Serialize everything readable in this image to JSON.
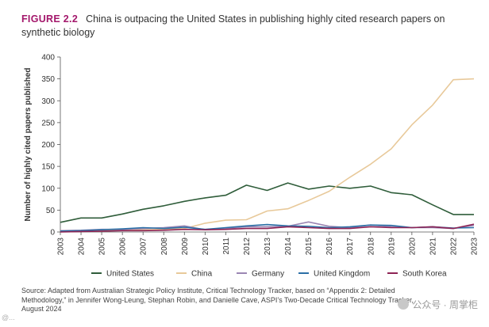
{
  "header": {
    "figure_label": "FIGURE 2.2",
    "title": "China is outpacing the United States in publishing highly cited research papers on synthetic biology"
  },
  "source": "Source: Adapted from Australian Strategic Policy Institute, Critical Technology Tracker, based on “Appendix 2: Detailed Methodology,” in Jennifer Wong-Leung, Stephan Robin, and Danielle Cave, ASPI’s Two-Decade Critical Technology Tracker, August 2024",
  "watermark": "公众号 · 周掌柜",
  "footer_mark": "@...",
  "chart_data": {
    "type": "line",
    "title": "China is outpacing the United States in publishing highly cited research papers on synthetic biology",
    "xlabel": "",
    "ylabel": "Number of highly cited papers published",
    "x": [
      "2003",
      "2004",
      "2005",
      "2006",
      "2007",
      "2008",
      "2009",
      "2010",
      "2011",
      "2012",
      "2013",
      "2014",
      "2015",
      "2016",
      "2017",
      "2018",
      "2019",
      "2020",
      "2021",
      "2022",
      "2023"
    ],
    "ylim": [
      0,
      400
    ],
    "yticks": [
      0,
      50,
      100,
      150,
      200,
      250,
      300,
      350,
      400
    ],
    "grid": false,
    "legend_position": "bottom",
    "series": [
      {
        "name": "United States",
        "color": "#2f5d3a",
        "values": [
          22,
          32,
          32,
          41,
          52,
          60,
          70,
          78,
          84,
          107,
          95,
          112,
          98,
          105,
          100,
          105,
          90,
          85,
          62,
          40,
          40
        ]
      },
      {
        "name": "China",
        "color": "#e8c99a",
        "values": [
          2,
          2,
          3,
          4,
          5,
          6,
          8,
          20,
          27,
          28,
          48,
          53,
          72,
          93,
          125,
          155,
          190,
          245,
          290,
          348,
          350
        ]
      },
      {
        "name": "Germany",
        "color": "#9b86b3",
        "values": [
          3,
          4,
          6,
          6,
          8,
          10,
          14,
          5,
          8,
          12,
          12,
          13,
          23,
          13,
          10,
          16,
          12,
          10,
          10,
          8,
          15
        ]
      },
      {
        "name": "United Kingdom",
        "color": "#2b6fa6",
        "values": [
          2,
          3,
          5,
          7,
          10,
          8,
          11,
          6,
          10,
          14,
          17,
          14,
          13,
          10,
          12,
          16,
          15,
          10,
          12,
          9,
          10
        ]
      },
      {
        "name": "South Korea",
        "color": "#8e2455",
        "values": [
          0,
          1,
          2,
          3,
          3,
          4,
          6,
          5,
          6,
          8,
          8,
          12,
          10,
          8,
          8,
          12,
          10,
          10,
          12,
          8,
          18
        ]
      }
    ]
  }
}
